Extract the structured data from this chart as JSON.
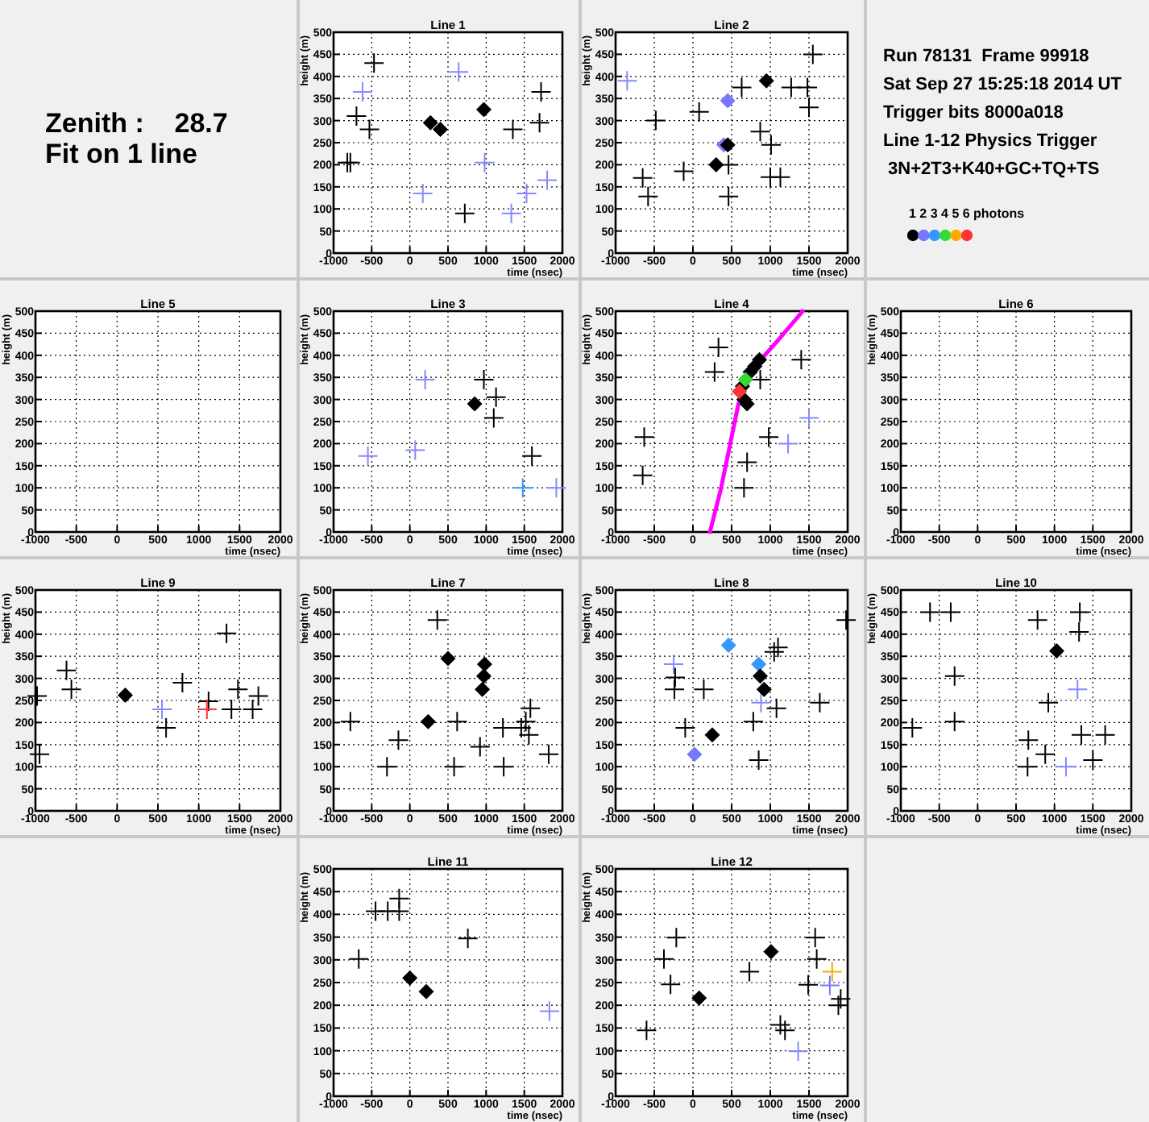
{
  "chart_data": [
    {
      "type": "other",
      "annotations": [
        "Zenith :    28.7",
        "Fit on 1 line"
      ]
    },
    {
      "type": "scatter",
      "title": "Line 1",
      "xlabel": "time (nsec)",
      "ylabel": "height (m)",
      "xlim": [
        -1000,
        2000
      ],
      "xticks": [
        -1000,
        -500,
        0,
        500,
        1000,
        1500,
        2000
      ],
      "ylim": [
        0,
        500
      ],
      "yticks": [
        0,
        50,
        100,
        150,
        200,
        250,
        300,
        350,
        400,
        450,
        500
      ],
      "grid": true,
      "series": [
        {
          "marker": "cross",
          "x": [
            -470,
            -700,
            -530,
            -820,
            -780,
            720,
            1350,
            1700,
            1720,
            -620,
            640,
            170,
            980,
            1330,
            1530,
            1800
          ],
          "values": [
            430,
            310,
            280,
            205,
            205,
            90,
            280,
            295,
            365,
            365,
            410,
            135,
            205,
            90,
            135,
            165
          ],
          "colors": [
            "#000000",
            "#000000",
            "#000000",
            "#000000",
            "#000000",
            "#000000",
            "#000000",
            "#000000",
            "#000000",
            "#8888ff",
            "#8888ff",
            "#8888ff",
            "#8888ff",
            "#8888ff",
            "#8888ff",
            "#8888ff"
          ]
        },
        {
          "marker": "diamond",
          "x": [
            270,
            400,
            970
          ],
          "values": [
            295,
            280,
            325
          ],
          "colors": [
            "#000000",
            "#000000",
            "#000000"
          ]
        }
      ]
    },
    {
      "type": "scatter",
      "title": "Line 2",
      "xlabel": "time (nsec)",
      "ylabel": "height (m)",
      "xlim": [
        -1000,
        2000
      ],
      "xticks": [
        -1000,
        -500,
        0,
        500,
        1000,
        1500,
        2000
      ],
      "ylim": [
        0,
        500
      ],
      "yticks": [
        0,
        50,
        100,
        150,
        200,
        250,
        300,
        350,
        400,
        450,
        500
      ],
      "grid": true,
      "series": [
        {
          "marker": "cross",
          "x": [
            -850,
            1550,
            630,
            1270,
            1480,
            1500,
            -480,
            80,
            460,
            870,
            1010,
            1000,
            1130,
            -120,
            -650,
            -580,
            460
          ],
          "values": [
            390,
            450,
            375,
            375,
            375,
            330,
            300,
            320,
            200,
            275,
            245,
            172,
            172,
            185,
            170,
            128,
            128
          ],
          "colors": [
            "#8888ff",
            "#000000",
            "#000000",
            "#000000",
            "#000000",
            "#000000",
            "#000000",
            "#000000",
            "#000000",
            "#000000",
            "#000000",
            "#000000",
            "#000000",
            "#000000",
            "#000000",
            "#000000",
            "#000000"
          ]
        },
        {
          "marker": "diamond",
          "x": [
            950,
            450,
            400,
            450,
            300
          ],
          "values": [
            390,
            345,
            245,
            245,
            200
          ],
          "colors": [
            "#000000",
            "#7777ff",
            "#7777ff",
            "#000000",
            "#000000"
          ]
        }
      ]
    },
    {
      "type": "other",
      "annotations": [
        "Run 78131  Frame 99918",
        "Sat Sep 27 15:25:18 2014 UT",
        "Trigger bits 8000a018",
        "Line 1-12 Physics Trigger",
        " 3N+2T3+K40+GC+TQ+TS"
      ],
      "categories": [
        "1",
        "2",
        "3",
        "4",
        "5",
        "6"
      ],
      "colors": [
        "#000000",
        "#7777ff",
        "#3399ff",
        "#33dd33",
        "#ffaa00",
        "#ff3333"
      ],
      "legend_title": "photons"
    },
    {
      "type": "scatter",
      "title": "Line 5",
      "xlabel": "time (nsec)",
      "ylabel": "height (m)",
      "xlim": [
        -1000,
        2000
      ],
      "xticks": [
        -1000,
        -500,
        0,
        500,
        1000,
        1500,
        2000
      ],
      "ylim": [
        0,
        500
      ],
      "yticks": [
        0,
        50,
        100,
        150,
        200,
        250,
        300,
        350,
        400,
        450,
        500
      ],
      "grid": true
    },
    {
      "type": "scatter",
      "title": "Line 3",
      "xlabel": "time (nsec)",
      "ylabel": "height (m)",
      "xlim": [
        -1000,
        2000
      ],
      "xticks": [
        -1000,
        -500,
        0,
        500,
        1000,
        1500,
        2000
      ],
      "ylim": [
        0,
        500
      ],
      "yticks": [
        0,
        50,
        100,
        150,
        200,
        250,
        300,
        350,
        400,
        450,
        500
      ],
      "grid": true,
      "series": [
        {
          "marker": "cross",
          "x": [
            -550,
            200,
            70,
            1480,
            1920,
            1130,
            970,
            1100,
            1600
          ],
          "values": [
            172,
            345,
            185,
            100,
            100,
            305,
            345,
            258,
            172
          ],
          "colors": [
            "#8888ff",
            "#8888ff",
            "#8888ff",
            "#3399ff",
            "#8888ff",
            "#000000",
            "#000000",
            "#000000",
            "#000000"
          ]
        },
        {
          "marker": "diamond",
          "x": [
            850
          ],
          "values": [
            290
          ],
          "colors": [
            "#000000"
          ]
        }
      ]
    },
    {
      "type": "scatter",
      "title": "Line 4",
      "xlabel": "time (nsec)",
      "ylabel": "height (m)",
      "xlim": [
        -1000,
        2000
      ],
      "xticks": [
        -1000,
        -500,
        0,
        500,
        1000,
        1500,
        2000
      ],
      "ylim": [
        0,
        500
      ],
      "yticks": [
        0,
        50,
        100,
        150,
        200,
        250,
        300,
        350,
        400,
        450,
        500
      ],
      "grid": true,
      "series": [
        {
          "type": "line",
          "color": "#ff00ff",
          "x": [
            220,
            362,
            482,
            588,
            800,
            1080,
            1420
          ],
          "values": [
            0,
            98,
            200,
            290,
            375,
            430,
            500
          ]
        },
        {
          "marker": "cross",
          "x": [
            -630,
            -650,
            330,
            280,
            1400,
            980,
            700,
            660,
            870,
            1500,
            1230
          ],
          "values": [
            215,
            128,
            418,
            362,
            390,
            215,
            158,
            100,
            345,
            258,
            200
          ],
          "colors": [
            "#000000",
            "#000000",
            "#000000",
            "#000000",
            "#000000",
            "#000000",
            "#000000",
            "#000000",
            "#000000",
            "#8888ff",
            "#8888ff"
          ]
        },
        {
          "marker": "diamond",
          "x": [
            860,
            800,
            740,
            700,
            660,
            640,
            680,
            600
          ],
          "values": [
            390,
            375,
            362,
            290,
            300,
            330,
            345,
            318
          ],
          "colors": [
            "#000000",
            "#000000",
            "#000000",
            "#000000",
            "#000000",
            "#000000",
            "#33dd33",
            "#ff3333"
          ]
        }
      ]
    },
    {
      "type": "scatter",
      "title": "Line 6",
      "xlabel": "time (nsec)",
      "ylabel": "height (m)",
      "xlim": [
        -1000,
        2000
      ],
      "xticks": [
        -1000,
        -500,
        0,
        500,
        1000,
        1500,
        2000
      ],
      "ylim": [
        0,
        500
      ],
      "yticks": [
        0,
        50,
        100,
        150,
        200,
        250,
        300,
        350,
        400,
        450,
        500
      ],
      "grid": true
    },
    {
      "type": "scatter",
      "title": "Line 9",
      "xlabel": "time (nsec)",
      "ylabel": "height (m)",
      "xlim": [
        -1000,
        2000
      ],
      "xticks": [
        -1000,
        -500,
        0,
        500,
        1000,
        1500,
        2000
      ],
      "ylim": [
        0,
        500
      ],
      "yticks": [
        0,
        50,
        100,
        150,
        200,
        250,
        300,
        350,
        400,
        450,
        500
      ],
      "grid": true,
      "series": [
        {
          "marker": "cross",
          "x": [
            -980,
            -950,
            -620,
            -560,
            600,
            800,
            1120,
            1340,
            1480,
            1400,
            1660,
            1730,
            550,
            1100
          ],
          "values": [
            260,
            128,
            318,
            275,
            188,
            290,
            248,
            402,
            275,
            230,
            230,
            260,
            230,
            230
          ],
          "colors": [
            "#000000",
            "#000000",
            "#000000",
            "#000000",
            "#000000",
            "#000000",
            "#000000",
            "#000000",
            "#000000",
            "#000000",
            "#000000",
            "#000000",
            "#8888ff",
            "#ff3333"
          ]
        },
        {
          "marker": "diamond",
          "x": [
            100
          ],
          "values": [
            262
          ],
          "colors": [
            "#000000"
          ]
        }
      ]
    },
    {
      "type": "scatter",
      "title": "Line 7",
      "xlabel": "time (nsec)",
      "ylabel": "height (m)",
      "xlim": [
        -1000,
        2000
      ],
      "xticks": [
        -1000,
        -500,
        0,
        500,
        1000,
        1500,
        2000
      ],
      "ylim": [
        0,
        500
      ],
      "yticks": [
        0,
        50,
        100,
        150,
        200,
        250,
        300,
        350,
        400,
        450,
        500
      ],
      "grid": true,
      "series": [
        {
          "marker": "cross",
          "x": [
            -780,
            -300,
            -150,
            360,
            580,
            620,
            920,
            1220,
            1230,
            1460,
            1520,
            1580,
            1560,
            1820
          ],
          "values": [
            202,
            100,
            160,
            432,
            100,
            202,
            145,
            188,
            100,
            188,
            202,
            232,
            172,
            128
          ],
          "colors": [
            "#000000",
            "#000000",
            "#000000",
            "#000000",
            "#000000",
            "#000000",
            "#000000",
            "#000000",
            "#000000",
            "#000000",
            "#000000",
            "#000000",
            "#000000",
            "#000000"
          ]
        },
        {
          "marker": "diamond",
          "x": [
            240,
            500,
            980,
            970,
            950
          ],
          "values": [
            202,
            345,
            332,
            305,
            275
          ],
          "colors": [
            "#000000",
            "#000000",
            "#000000",
            "#000000",
            "#000000"
          ]
        }
      ]
    },
    {
      "type": "scatter",
      "title": "Line 8",
      "xlabel": "time (nsec)",
      "ylabel": "height (m)",
      "xlim": [
        -1000,
        2000
      ],
      "xticks": [
        -1000,
        -500,
        0,
        500,
        1000,
        1500,
        2000
      ],
      "ylim": [
        0,
        500
      ],
      "yticks": [
        0,
        50,
        100,
        150,
        200,
        250,
        300,
        350,
        400,
        450,
        500
      ],
      "grid": true,
      "series": [
        {
          "marker": "cross",
          "x": [
            -250,
            880,
            -230,
            -240,
            -100,
            140,
            780,
            850,
            1050,
            1100,
            1080,
            1640,
            1980
          ],
          "values": [
            332,
            245,
            302,
            275,
            188,
            275,
            202,
            115,
            360,
            370,
            232,
            245,
            432
          ],
          "colors": [
            "#8888ff",
            "#8888ff",
            "#000000",
            "#000000",
            "#000000",
            "#000000",
            "#000000",
            "#000000",
            "#000000",
            "#000000",
            "#000000",
            "#000000",
            "#000000"
          ]
        },
        {
          "marker": "diamond",
          "x": [
            460,
            850,
            870,
            920,
            250,
            20
          ],
          "values": [
            375,
            332,
            305,
            275,
            172,
            128
          ],
          "colors": [
            "#3399ff",
            "#3399ff",
            "#000000",
            "#000000",
            "#000000",
            "#7777ff"
          ]
        }
      ]
    },
    {
      "type": "scatter",
      "title": "Line 10",
      "xlabel": "time (nsec)",
      "ylabel": "height (m)",
      "xlim": [
        -1000,
        2000
      ],
      "xticks": [
        -1000,
        -500,
        0,
        500,
        1000,
        1500,
        2000
      ],
      "ylim": [
        0,
        500
      ],
      "yticks": [
        0,
        50,
        100,
        150,
        200,
        250,
        300,
        350,
        400,
        450,
        500
      ],
      "grid": true,
      "series": [
        {
          "marker": "cross",
          "x": [
            -850,
            -620,
            -350,
            -300,
            -300,
            780,
            920,
            660,
            650,
            880,
            1330,
            1320,
            1350,
            1660,
            1500,
            1300,
            1150
          ],
          "values": [
            188,
            450,
            450,
            305,
            202,
            432,
            245,
            160,
            100,
            128,
            450,
            405,
            172,
            172,
            115,
            275,
            100
          ],
          "colors": [
            "#000000",
            "#000000",
            "#000000",
            "#000000",
            "#000000",
            "#000000",
            "#000000",
            "#000000",
            "#000000",
            "#000000",
            "#000000",
            "#000000",
            "#000000",
            "#000000",
            "#000000",
            "#8888ff",
            "#8888ff"
          ]
        },
        {
          "marker": "diamond",
          "x": [
            1030
          ],
          "values": [
            362
          ],
          "colors": [
            "#000000"
          ]
        }
      ]
    },
    {
      "type": "scatter",
      "title": "Line 11",
      "xlabel": "time (nsec)",
      "ylabel": "height (m)",
      "xlim": [
        -1000,
        2000
      ],
      "xticks": [
        -1000,
        -500,
        0,
        500,
        1000,
        1500,
        2000
      ],
      "ylim": [
        0,
        500
      ],
      "yticks": [
        0,
        50,
        100,
        150,
        200,
        250,
        300,
        350,
        400,
        450,
        500
      ],
      "grid": true,
      "series": [
        {
          "marker": "cross",
          "x": [
            -670,
            -450,
            -290,
            -140,
            -140,
            760,
            1830
          ],
          "values": [
            302,
            407,
            407,
            407,
            435,
            347,
            187
          ],
          "colors": [
            "#000000",
            "#000000",
            "#000000",
            "#000000",
            "#000000",
            "#000000",
            "#8888ff"
          ]
        },
        {
          "marker": "diamond",
          "x": [
            0,
            215
          ],
          "values": [
            260,
            230
          ],
          "colors": [
            "#000000",
            "#000000"
          ]
        }
      ]
    },
    {
      "type": "scatter",
      "title": "Line 12",
      "xlabel": "time (nsec)",
      "ylabel": "height (m)",
      "xlim": [
        -1000,
        2000
      ],
      "xticks": [
        -1000,
        -500,
        0,
        500,
        1000,
        1500,
        2000
      ],
      "ylim": [
        0,
        500
      ],
      "yticks": [
        0,
        50,
        100,
        150,
        200,
        250,
        300,
        350,
        400,
        450,
        500
      ],
      "grid": true,
      "series": [
        {
          "marker": "cross",
          "x": [
            -600,
            -375,
            -290,
            -215,
            730,
            1130,
            1190,
            1490,
            1580,
            1600,
            1880,
            1910,
            1800,
            1770,
            1360
          ],
          "values": [
            145,
            302,
            246,
            349,
            274,
            157,
            145,
            245,
            349,
            302,
            200,
            214,
            274,
            244,
            99
          ],
          "colors": [
            "#000000",
            "#000000",
            "#000000",
            "#000000",
            "#000000",
            "#000000",
            "#000000",
            "#000000",
            "#000000",
            "#000000",
            "#000000",
            "#000000",
            "#ffaa00",
            "#7777ff",
            "#8888ff"
          ]
        },
        {
          "marker": "diamond",
          "x": [
            1010,
            80
          ],
          "values": [
            318,
            216
          ],
          "colors": [
            "#000000",
            "#000000"
          ]
        }
      ]
    }
  ]
}
